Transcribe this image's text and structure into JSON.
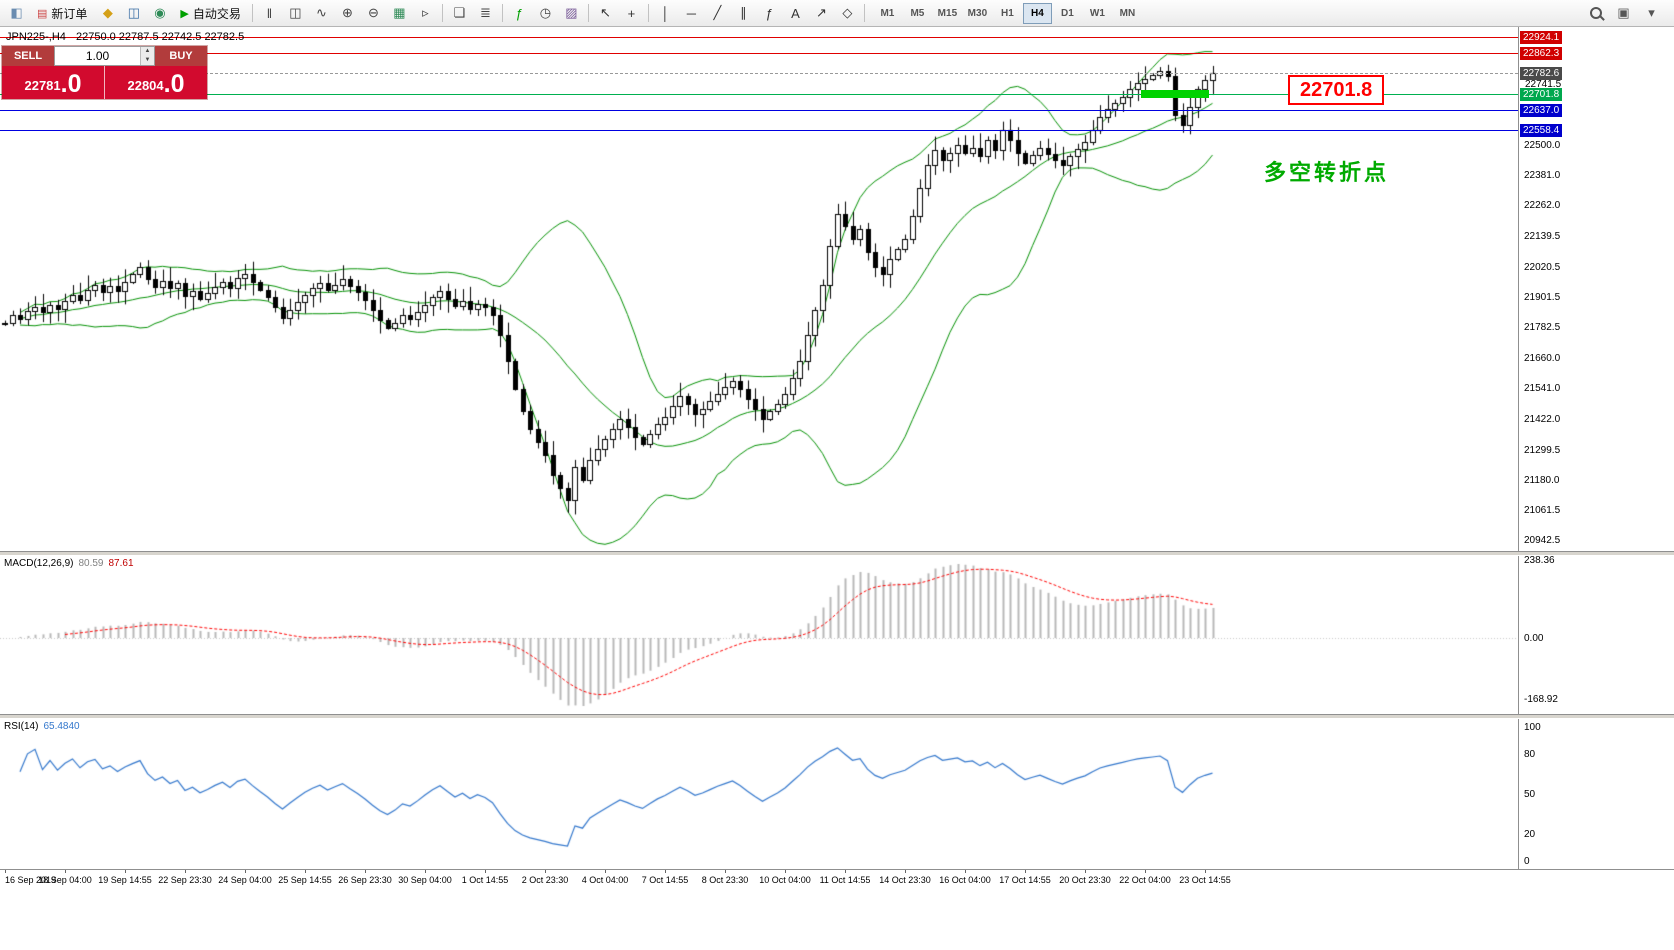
{
  "toolbar": {
    "groups": [
      [
        {
          "name": "chart-window-icon",
          "glyph": "◧",
          "color": "#6a8cb0"
        },
        {
          "name": "new-order-button",
          "glyph": "▤",
          "color": "#cc4444",
          "label": "新订单"
        },
        {
          "name": "market-watch-icon",
          "glyph": "◆",
          "color": "#d4a017"
        },
        {
          "name": "navigator-icon",
          "glyph": "◫",
          "color": "#3a6ea5"
        },
        {
          "name": "terminal-icon",
          "glyph": "◉",
          "color": "#2e8b57"
        },
        {
          "name": "auto-trading-button",
          "glyph": "▶",
          "color": "#00a000",
          "label": "自动交易"
        }
      ],
      [
        {
          "name": "bar-chart-icon",
          "glyph": "‖",
          "color": "#444444"
        },
        {
          "name": "candlestick-chart-icon",
          "glyph": "◫",
          "color": "#444444"
        },
        {
          "name": "line-chart-icon",
          "glyph": "∿",
          "color": "#444444"
        },
        {
          "name": "zoom-in-icon",
          "glyph": "⊕",
          "color": "#444444"
        },
        {
          "name": "zoom-out-icon",
          "glyph": "⊖",
          "color": "#444444"
        },
        {
          "name": "auto-scroll-icon",
          "glyph": "▦",
          "color": "#2e8b57"
        },
        {
          "name": "chart-shift-icon",
          "glyph": "▹",
          "color": "#444444"
        }
      ],
      [
        {
          "name": "tile-windows-icon",
          "glyph": "❏",
          "color": "#444444"
        },
        {
          "name": "data-list-icon",
          "glyph": "≣",
          "color": "#444444"
        }
      ],
      [
        {
          "name": "indicators-icon",
          "glyph": "ƒ",
          "color": "#00a000"
        },
        {
          "name": "periods-icon",
          "glyph": "◷",
          "color": "#444444"
        },
        {
          "name": "templates-icon",
          "glyph": "▨",
          "color": "#7a5c99"
        }
      ],
      [
        {
          "name": "cursor-icon",
          "glyph": "↖",
          "color": "#333333"
        },
        {
          "name": "crosshair-icon",
          "glyph": "+",
          "color": "#333333"
        }
      ],
      [
        {
          "name": "vertical-line-icon",
          "glyph": "│",
          "color": "#333333"
        },
        {
          "name": "horizontal-line-icon",
          "glyph": "─",
          "color": "#333333"
        },
        {
          "name": "trendline-icon",
          "glyph": "╱",
          "color": "#333333"
        },
        {
          "name": "channel-icon",
          "glyph": "∥",
          "color": "#333333"
        },
        {
          "name": "fibonacci-icon",
          "glyph": "ƒ",
          "color": "#333333"
        },
        {
          "name": "text-icon",
          "glyph": "A",
          "color": "#333333"
        },
        {
          "name": "arrows-icon",
          "glyph": "↗",
          "color": "#333333"
        },
        {
          "name": "shapes-icon",
          "glyph": "◇",
          "color": "#333333"
        }
      ]
    ],
    "timeframes": [
      "M1",
      "M5",
      "M15",
      "M30",
      "H1",
      "H4",
      "D1",
      "W1",
      "MN"
    ],
    "active_timeframe": "H4",
    "right": [
      {
        "name": "search-icon",
        "css": "magnifier"
      },
      {
        "name": "new-window-icon",
        "glyph": "▣",
        "color": "#555555"
      },
      {
        "name": "window-menu-icon",
        "glyph": "▾",
        "color": "#555555"
      }
    ]
  },
  "symbol_header": {
    "title": "JPN225-,H4",
    "ohlc": "22750.0 22787.5 22742.5 22782.5"
  },
  "one_click": {
    "sell_label": "SELL",
    "buy_label": "BUY",
    "volume": "1.00",
    "spinner_up": "▲",
    "spinner_down": "▼",
    "sell_price": {
      "main": "22781",
      "pips": ".0"
    },
    "buy_price": {
      "main": "22804",
      "pips": ".0"
    }
  },
  "annotations": {
    "price_label": "22701.8",
    "turning_point_text": "多空转折点"
  },
  "levels": [
    {
      "name": "resistance-line-1",
      "price": 22924.1,
      "label": "22924.1",
      "style": "red"
    },
    {
      "name": "resistance-line-2",
      "price": 22862.3,
      "label": "22862.3",
      "style": "red"
    },
    {
      "name": "current-price-line",
      "price": 22782.6,
      "label": "22782.6",
      "style": "current"
    },
    {
      "name": "minor-level-label",
      "price": 22741.5,
      "label": "22741.5",
      "style": "plain"
    },
    {
      "name": "pivot-line",
      "price": 22701.8,
      "label": "22701.8",
      "style": "green"
    },
    {
      "name": "support-line-1",
      "price": 22637.0,
      "label": "22637.0",
      "style": "blue"
    },
    {
      "name": "support-line-2",
      "price": 22558.4,
      "label": "22558.4",
      "style": "blue"
    }
  ],
  "highlight_zone": {
    "price": 22701.8,
    "from_bar": 152,
    "to_bar": 160
  },
  "price_axis_ticks": [
    {
      "price": 22500.0,
      "label": "22500.0"
    },
    {
      "price": 22381.0,
      "label": "22381.0"
    },
    {
      "price": 22262.0,
      "label": "22262.0"
    },
    {
      "price": 22139.5,
      "label": "22139.5"
    },
    {
      "price": 22020.5,
      "label": "22020.5"
    },
    {
      "price": 21901.5,
      "label": "21901.5"
    },
    {
      "price": 21782.5,
      "label": "21782.5"
    },
    {
      "price": 21660.0,
      "label": "21660.0"
    },
    {
      "price": 21541.0,
      "label": "21541.0"
    },
    {
      "price": 21422.0,
      "label": "21422.0"
    },
    {
      "price": 21299.5,
      "label": "21299.5"
    },
    {
      "price": 21180.0,
      "label": "21180.0"
    },
    {
      "price": 21061.5,
      "label": "21061.5"
    },
    {
      "price": 20942.5,
      "label": "20942.5"
    }
  ],
  "macd_panel": {
    "label": "MACD(12,26,9)",
    "value_main": "80.59",
    "value_signal": "87.61",
    "axis": [
      {
        "v": 238.36,
        "label": "238.36"
      },
      {
        "v": 0,
        "label": "0.00"
      },
      {
        "v": -168.92,
        "label": "-168.92"
      }
    ]
  },
  "rsi_panel": {
    "label": "RSI(14)",
    "value": "65.4840",
    "axis": [
      {
        "v": 100,
        "label": "100"
      },
      {
        "v": 80,
        "label": "80"
      },
      {
        "v": 50,
        "label": "50"
      },
      {
        "v": 20,
        "label": "20"
      },
      {
        "v": 0,
        "label": "0"
      }
    ]
  },
  "time_axis": {
    "labels": [
      "16 Sep 2019",
      "18 Sep 04:00",
      "19 Sep 14:55",
      "22 Sep 23:30",
      "24 Sep 04:00",
      "25 Sep 14:55",
      "26 Sep 23:30",
      "30 Sep 04:00",
      "1 Oct 14:55",
      "2 Oct 23:30",
      "4 Oct 04:00",
      "7 Oct 14:55",
      "8 Oct 23:30",
      "10 Oct 04:00",
      "11 Oct 14:55",
      "14 Oct 23:30",
      "16 Oct 04:00",
      "17 Oct 14:55",
      "20 Oct 23:30",
      "22 Oct 04:00",
      "23 Oct 14:55"
    ]
  },
  "chart_data": {
    "type": "candlestick",
    "symbol": "JPN225-",
    "timeframe": "H4",
    "price_top": 22965,
    "price_bottom": 20900,
    "first_open": 21795,
    "closes": [
      21800,
      21830,
      21815,
      21845,
      21860,
      21840,
      21870,
      21855,
      21885,
      21910,
      21890,
      21930,
      21950,
      21920,
      21945,
      21925,
      21960,
      21990,
      22020,
      21970,
      21940,
      21965,
      21935,
      21955,
      21905,
      21925,
      21895,
      21915,
      21940,
      21960,
      21935,
      21975,
      21990,
      21960,
      21930,
      21900,
      21860,
      21820,
      21850,
      21880,
      21910,
      21935,
      21955,
      21930,
      21950,
      21970,
      21945,
      21920,
      21890,
      21850,
      21810,
      21780,
      21800,
      21830,
      21815,
      21840,
      21870,
      21900,
      21925,
      21895,
      21865,
      21885,
      21855,
      21875,
      21860,
      21830,
      21750,
      21650,
      21540,
      21450,
      21380,
      21330,
      21280,
      21200,
      21150,
      21100,
      21230,
      21180,
      21260,
      21300,
      21340,
      21380,
      21420,
      21390,
      21350,
      21320,
      21360,
      21400,
      21430,
      21470,
      21510,
      21480,
      21440,
      21460,
      21490,
      21520,
      21545,
      21570,
      21540,
      21500,
      21460,
      21420,
      21450,
      21480,
      21520,
      21580,
      21650,
      21750,
      21850,
      21950,
      22100,
      22230,
      22180,
      22130,
      22170,
      22080,
      22020,
      21990,
      22050,
      22090,
      22130,
      22220,
      22330,
      22420,
      22480,
      22440,
      22470,
      22500,
      22470,
      22490,
      22455,
      22520,
      22480,
      22560,
      22520,
      22470,
      22430,
      22460,
      22490,
      22465,
      22440,
      22420,
      22455,
      22485,
      22510,
      22560,
      22610,
      22640,
      22665,
      22690,
      22720,
      22745,
      22760,
      22775,
      22790,
      22770,
      22620,
      22580,
      22650,
      22720,
      22755,
      22782.5
    ],
    "indicators": [
      {
        "type": "bollinger",
        "period": 20,
        "deviation": 2,
        "color": "#009000"
      },
      {
        "type": "macd",
        "fast": 12,
        "slow": 26,
        "signal": 9,
        "hist_color": "#b8b8b8",
        "signal_color": "#ff0000"
      },
      {
        "type": "rsi",
        "period": 14,
        "color": "#3377cc"
      }
    ],
    "colors": {
      "bull_body": "#ffffff",
      "bear_body": "#000000",
      "outline": "#000000"
    }
  }
}
